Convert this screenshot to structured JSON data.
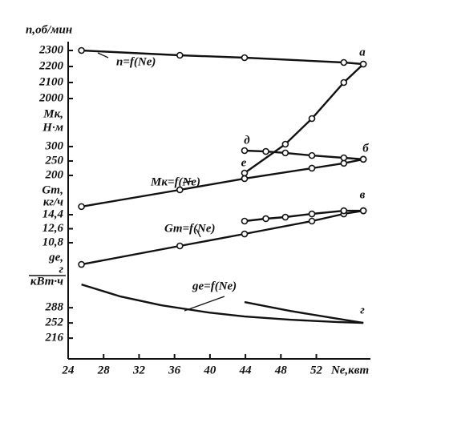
{
  "chart_data": {
    "type": "line",
    "xlabel": "Nе,квт",
    "xlim": [
      24,
      58.1
    ],
    "xticks": [
      24,
      28,
      32,
      36,
      40,
      44,
      48,
      52
    ],
    "y_axes": [
      {
        "label": [
          "n,об/мин"
        ],
        "ylim": [
          375,
          2415
        ],
        "yticks": [
          2300,
          2200,
          2100,
          2000
        ]
      },
      {
        "label": [
          "Mк,",
          "H·м"
        ],
        "ylim": [
          -436,
          697
        ],
        "yticks": [
          300,
          250,
          200
        ]
      },
      {
        "label": [
          "Gт,",
          "кг/ч"
        ],
        "ylim": [
          -4.11,
          37.85
        ],
        "yticks": [
          {
            "value": 14.4,
            "label": "14,4"
          },
          {
            "value": 12.6,
            "label": "12,6"
          },
          {
            "value": 10.8,
            "label": "10,8"
          }
        ]
      },
      {
        "label": [
          "gе,",
          "г",
          "кВт·ч"
        ],
        "ylim": [
          167,
          940
        ],
        "yticks": [
          288,
          252,
          216
        ]
      }
    ],
    "series": [
      {
        "name": "n=f(Nе)",
        "axis": 0,
        "color": "#111",
        "markers": true,
        "x": [
          25.5,
          36.6,
          43.9,
          55.1,
          57.3
        ],
        "values": [
          2300,
          2270,
          2255,
          2225,
          2215
        ]
      },
      {
        "axis": 0,
        "color": "#111",
        "markers": true,
        "x": [
          43.9,
          48.5,
          51.5,
          55.1,
          57.3
        ],
        "values": [
          1535,
          1715,
          1875,
          2100,
          2215
        ]
      },
      {
        "name": "Mк=f(Nе)",
        "axis": 1,
        "color": "#111",
        "markers": true,
        "x": [
          25.5,
          36.6,
          43.9,
          51.5,
          55.1,
          57.3
        ],
        "values": [
          92,
          150,
          189,
          225,
          242,
          256
        ]
      },
      {
        "axis": 1,
        "color": "#111",
        "markers": true,
        "x": [
          43.9,
          46.3,
          48.5,
          51.5,
          55.1,
          57.3
        ],
        "values": [
          286,
          283,
          278,
          269,
          261,
          256
        ]
      },
      {
        "name": "Gт=f(Nе)",
        "axis": 2,
        "color": "#111",
        "markers": true,
        "x": [
          25.5,
          36.6,
          43.9,
          51.5,
          55.1,
          57.3
        ],
        "values": [
          8.02,
          10.39,
          11.93,
          13.58,
          14.5,
          14.91
        ]
      },
      {
        "axis": 2,
        "color": "#111",
        "markers": true,
        "x": [
          43.9,
          46.3,
          48.5,
          51.5,
          55.1,
          57.3
        ],
        "values": [
          13.58,
          13.89,
          14.09,
          14.5,
          14.91,
          14.91
        ]
      },
      {
        "name": "gе=f(Nе)",
        "axis": 3,
        "color": "#111",
        "markers": false,
        "x": [
          25.5,
          29.9,
          34.5,
          39.9,
          43.9,
          49,
          54.5,
          57.3
        ],
        "values": [
          343,
          314.5,
          293.7,
          276.6,
          267.2,
          259.6,
          253.9,
          252
        ]
      },
      {
        "axis": 3,
        "color": "#111",
        "markers": false,
        "x": [
          43.9,
          49,
          54.5,
          57.3
        ],
        "values": [
          301.3,
          280.4,
          261.5,
          252
        ]
      }
    ],
    "annotations": [
      "а",
      "б",
      "в",
      "г",
      "д",
      "е"
    ]
  }
}
